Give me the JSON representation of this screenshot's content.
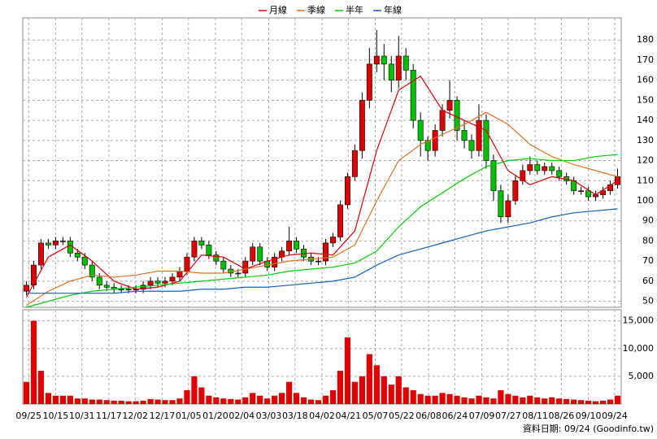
{
  "chart_data": [
    {
      "type": "candlestick",
      "xlim": [
        -0.5,
        81.5
      ],
      "xticks": [
        {
          "value": 0.3,
          "label": "09/25"
        },
        {
          "value": 4.0,
          "label": "10/15"
        },
        {
          "value": 7.6,
          "label": "10/31"
        },
        {
          "value": 11.3,
          "label": "11/17"
        },
        {
          "value": 14.9,
          "label": "12/02"
        },
        {
          "value": 18.6,
          "label": "12/17"
        },
        {
          "value": 22.2,
          "label": "01/05"
        },
        {
          "value": 25.9,
          "label": "01/20"
        },
        {
          "value": 29.5,
          "label": "02/04"
        },
        {
          "value": 33.2,
          "label": "03/03"
        },
        {
          "value": 36.8,
          "label": "03/18"
        },
        {
          "value": 40.5,
          "label": "04/02"
        },
        {
          "value": 44.1,
          "label": "04/21"
        },
        {
          "value": 47.8,
          "label": "05/07"
        },
        {
          "value": 51.4,
          "label": "05/22"
        },
        {
          "value": 55.1,
          "label": "06/08"
        },
        {
          "value": 58.7,
          "label": "06/24"
        },
        {
          "value": 62.4,
          "label": "07/09"
        },
        {
          "value": 66.0,
          "label": "07/27"
        },
        {
          "value": 69.7,
          "label": "08/11"
        },
        {
          "value": 73.3,
          "label": "08/26"
        },
        {
          "value": 77.0,
          "label": "09/10"
        },
        {
          "value": 80.6,
          "label": "09/24"
        }
      ],
      "ylim": [
        47,
        191
      ],
      "yticks": [
        50,
        60,
        70,
        80,
        90,
        100,
        110,
        120,
        130,
        140,
        150,
        160,
        170,
        180
      ],
      "grid": true,
      "up_color": "#e00000",
      "down_color": "#00c000",
      "open": [
        55,
        58,
        68,
        79,
        78,
        80,
        80,
        74,
        72,
        68,
        62,
        58,
        57,
        56,
        56,
        56,
        56,
        58,
        60,
        59,
        60,
        62,
        65,
        72,
        80,
        78,
        73,
        70,
        66,
        64,
        64,
        70,
        77,
        70,
        67,
        72,
        75,
        80,
        76,
        72,
        70,
        70,
        79,
        82,
        98,
        112,
        125,
        150,
        168,
        172,
        168,
        160,
        172,
        165,
        140,
        130,
        125,
        135,
        145,
        150,
        135,
        130,
        125,
        140,
        120,
        105,
        92,
        100,
        110,
        115,
        118,
        115,
        117,
        115,
        112,
        110,
        105,
        105,
        102,
        103,
        105,
        108
      ],
      "high": [
        60,
        70,
        81,
        81,
        82,
        82,
        82,
        76,
        74,
        70,
        64,
        60,
        59,
        58,
        58,
        58,
        60,
        62,
        62,
        62,
        64,
        67,
        74,
        82,
        82,
        80,
        75,
        72,
        68,
        66,
        72,
        79,
        79,
        72,
        74,
        77,
        87,
        82,
        78,
        74,
        72,
        81,
        84,
        100,
        114,
        128,
        154,
        176,
        185,
        178,
        172,
        182,
        176,
        168,
        144,
        132,
        138,
        148,
        160,
        152,
        140,
        133,
        148,
        143,
        123,
        108,
        103,
        113,
        118,
        122,
        120,
        119,
        119,
        117,
        114,
        112,
        107,
        107,
        105,
        107,
        110,
        116
      ],
      "low": [
        53,
        56,
        66,
        76,
        76,
        78,
        72,
        70,
        66,
        60,
        56,
        55,
        54,
        54,
        54,
        54,
        54,
        56,
        57,
        57,
        58,
        60,
        63,
        70,
        76,
        71,
        68,
        64,
        62,
        62,
        62,
        68,
        68,
        65,
        65,
        70,
        73,
        74,
        70,
        68,
        68,
        68,
        77,
        80,
        96,
        110,
        121,
        146,
        164,
        160,
        154,
        156,
        160,
        136,
        122,
        120,
        122,
        132,
        141,
        130,
        126,
        121,
        122,
        116,
        100,
        89,
        89,
        98,
        108,
        113,
        113,
        113,
        113,
        110,
        108,
        103,
        103,
        100,
        100,
        101,
        103,
        106
      ],
      "close": [
        58,
        68,
        79,
        78,
        80,
        80,
        74,
        72,
        68,
        62,
        58,
        57,
        56,
        56,
        56,
        56,
        58,
        60,
        59,
        60,
        62,
        65,
        72,
        80,
        78,
        73,
        70,
        66,
        64,
        64,
        70,
        77,
        70,
        67,
        72,
        75,
        80,
        76,
        72,
        70,
        70,
        79,
        82,
        98,
        112,
        125,
        150,
        168,
        172,
        168,
        160,
        172,
        165,
        140,
        130,
        125,
        135,
        145,
        150,
        135,
        130,
        125,
        140,
        120,
        105,
        92,
        100,
        110,
        115,
        118,
        115,
        117,
        115,
        112,
        110,
        105,
        105,
        102,
        103,
        105,
        108,
        112
      ],
      "lines": [
        {
          "name": "月線",
          "color": "#dd0000",
          "x": [
            0,
            3,
            6,
            9,
            12,
            15,
            18,
            21,
            24,
            27,
            30,
            33,
            36,
            39,
            42,
            45,
            48,
            51,
            54,
            57,
            60,
            63,
            66,
            69,
            72,
            75,
            78,
            81
          ],
          "values": [
            52,
            72,
            78,
            70,
            60,
            56,
            57,
            60,
            73,
            72,
            66,
            70,
            73,
            74,
            73,
            85,
            125,
            155,
            162,
            145,
            140,
            135,
            115,
            108,
            112,
            110,
            103,
            110
          ]
        },
        {
          "name": "季線",
          "color": "#e07020",
          "x": [
            0,
            3,
            6,
            9,
            12,
            15,
            18,
            21,
            24,
            27,
            30,
            33,
            36,
            39,
            42,
            45,
            48,
            51,
            54,
            57,
            60,
            63,
            66,
            69,
            72,
            75,
            78,
            81
          ],
          "values": [
            48,
            55,
            60,
            63,
            62,
            63,
            65,
            65,
            64,
            64,
            66,
            68,
            70,
            71,
            72,
            78,
            100,
            120,
            128,
            133,
            138,
            144,
            138,
            128,
            122,
            118,
            115,
            112
          ]
        },
        {
          "name": "半年",
          "color": "#00cc00",
          "x": [
            0,
            3,
            6,
            9,
            12,
            15,
            18,
            21,
            24,
            27,
            30,
            33,
            36,
            39,
            42,
            45,
            48,
            51,
            54,
            57,
            60,
            63,
            66,
            69,
            72,
            75,
            78,
            81
          ],
          "values": [
            47,
            50,
            53,
            55,
            56,
            57,
            58,
            59,
            60,
            61,
            62,
            63,
            65,
            66,
            67,
            69,
            75,
            87,
            97,
            104,
            111,
            117,
            120,
            121,
            120,
            120,
            122,
            123
          ]
        },
        {
          "name": "年線",
          "color": "#1060c0",
          "x": [
            0,
            3,
            6,
            9,
            12,
            15,
            18,
            21,
            24,
            27,
            30,
            33,
            36,
            39,
            42,
            45,
            48,
            51,
            54,
            57,
            60,
            63,
            66,
            69,
            72,
            75,
            78,
            81
          ],
          "values": [
            54,
            54,
            54,
            54,
            54,
            55,
            55,
            55,
            56,
            56,
            57,
            57,
            58,
            59,
            60,
            62,
            68,
            73,
            76,
            79,
            82,
            85,
            87,
            89,
            92,
            94,
            95,
            96
          ]
        }
      ]
    },
    {
      "type": "bar",
      "color": "#e00000",
      "ylim": [
        0,
        17000
      ],
      "yticks": [
        {
          "value": 5000,
          "label": "5,000"
        },
        {
          "value": 10000,
          "label": "10,000"
        },
        {
          "value": 15000,
          "label": "15,000"
        }
      ],
      "values": [
        4000,
        15000,
        6000,
        2000,
        1500,
        1500,
        1500,
        1000,
        1000,
        800,
        800,
        700,
        600,
        600,
        500,
        500,
        600,
        900,
        800,
        700,
        700,
        1000,
        2500,
        5000,
        3000,
        1500,
        1200,
        1000,
        900,
        800,
        1200,
        2000,
        1500,
        1000,
        1500,
        2000,
        4000,
        2000,
        1200,
        800,
        700,
        1500,
        2500,
        6000,
        12000,
        4000,
        5000,
        9000,
        7000,
        5000,
        3500,
        5000,
        3000,
        2500,
        1800,
        1500,
        1500,
        2000,
        1800,
        1500,
        1200,
        1000,
        1500,
        1200,
        1000,
        2500,
        1800,
        1500,
        1200,
        1500,
        1200,
        1000,
        1200,
        1000,
        900,
        800,
        700,
        600,
        500,
        600,
        800,
        1500
      ],
      "footnote": "資料日期: 09/24 (Goodinfo.tw)"
    }
  ]
}
